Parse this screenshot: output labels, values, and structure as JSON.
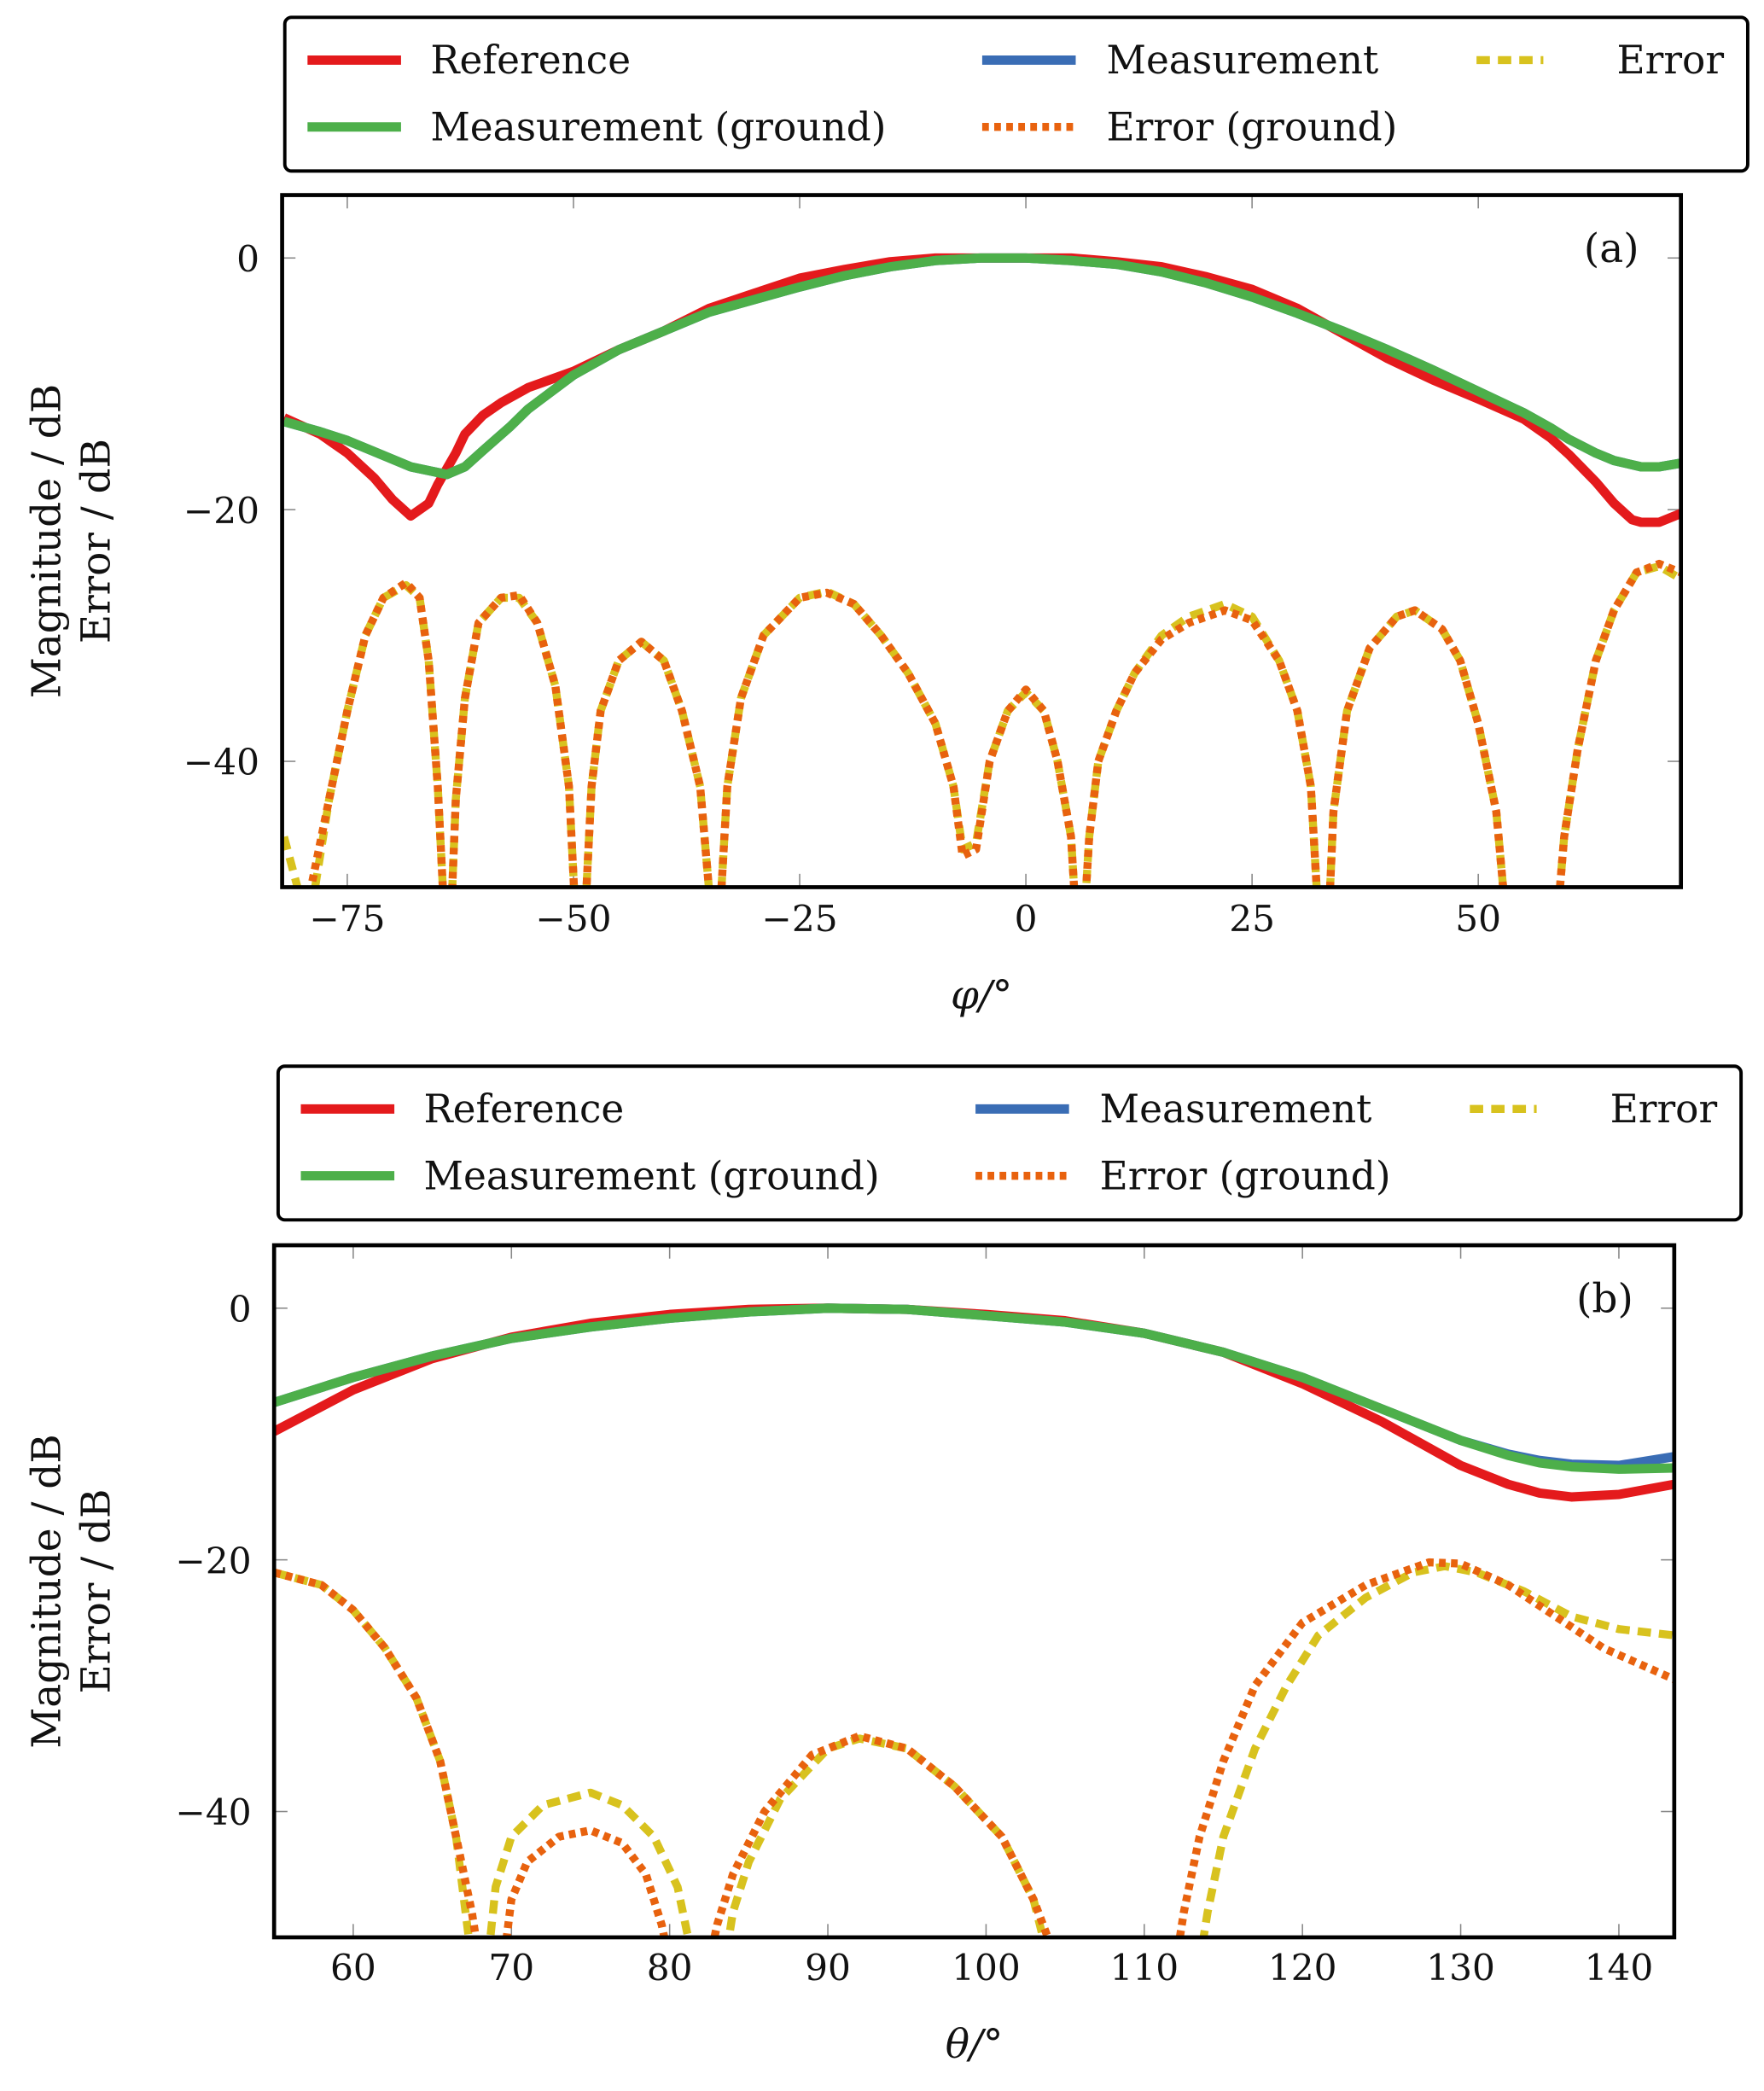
{
  "colors": {
    "Reference": "#e41a1c",
    "Measurement": "#3a6db5",
    "Error": "#d8c21e",
    "Measurement (ground)": "#4daf4a",
    "Error (ground)": "#e8620e"
  },
  "chart_data": [
    {
      "type": "line",
      "panel_label": "(a)",
      "xlabel": "φ/°",
      "ylabel": [
        "Magnitude / dB",
        "Error / dB"
      ],
      "xlim": [
        -82.2,
        72.4
      ],
      "ylim": [
        -50,
        5
      ],
      "xticks": [
        -75,
        -50,
        -25,
        0,
        25,
        50
      ],
      "xtick_labels": [
        "−75",
        "−50",
        "−25",
        "0",
        "25",
        "50"
      ],
      "yticks": [
        0,
        -20,
        -40
      ],
      "ytick_labels": [
        "0",
        "−20",
        "−40"
      ],
      "legend": [
        "Reference",
        "Measurement",
        "Error",
        "Measurement (ground)",
        "Error (ground)"
      ],
      "legend_placement": "top, outside",
      "series": [
        {
          "name": "Reference",
          "style": "solid",
          "x": [
            -82,
            -78,
            -75,
            -72,
            -70,
            -68,
            -66,
            -65,
            -63,
            -62,
            -60,
            -58,
            -55,
            -50,
            -45,
            -40,
            -35,
            -30,
            -25,
            -20,
            -15,
            -10,
            -5,
            0,
            5,
            10,
            15,
            20,
            25,
            30,
            35,
            40,
            45,
            50,
            55,
            58,
            60,
            63,
            65,
            67,
            68,
            70,
            72.4
          ],
          "y": [
            -12.7,
            -14,
            -15.5,
            -17.5,
            -19.2,
            -20.5,
            -19.5,
            -18,
            -15.5,
            -14,
            -12.5,
            -11.5,
            -10.3,
            -9,
            -7.3,
            -5.8,
            -4,
            -2.8,
            -1.6,
            -0.9,
            -0.3,
            0,
            0,
            0,
            0,
            -0.3,
            -0.7,
            -1.5,
            -2.5,
            -4,
            -6,
            -8,
            -9.7,
            -11.2,
            -12.8,
            -14.3,
            -15.6,
            -17.8,
            -19.5,
            -20.8,
            -21,
            -21,
            -20.3
          ]
        },
        {
          "name": "Measurement",
          "style": "solid",
          "x": [
            -82,
            -78,
            -75,
            -72,
            -68,
            -64,
            -62,
            -60,
            -57,
            -55,
            -50,
            -45,
            -40,
            -35,
            -30,
            -25,
            -20,
            -15,
            -10,
            -5,
            0,
            5,
            10,
            15,
            20,
            25,
            30,
            35,
            40,
            45,
            50,
            55,
            58,
            60,
            63,
            65,
            68,
            70,
            72.4
          ],
          "y": [
            -13,
            -13.8,
            -14.5,
            -15.4,
            -16.6,
            -17.2,
            -16.6,
            -15.3,
            -13.4,
            -12,
            -9.3,
            -7.3,
            -5.8,
            -4.3,
            -3.3,
            -2.3,
            -1.4,
            -0.7,
            -0.2,
            0,
            0,
            -0.2,
            -0.5,
            -1.1,
            -2,
            -3.1,
            -4.4,
            -5.8,
            -7.3,
            -8.9,
            -10.6,
            -12.3,
            -13.5,
            -14.4,
            -15.5,
            -16.1,
            -16.6,
            -16.6,
            -16.3
          ]
        },
        {
          "name": "Measurement (ground)",
          "style": "solid",
          "x": [
            -82,
            -78,
            -75,
            -72,
            -68,
            -64,
            -62,
            -60,
            -57,
            -55,
            -50,
            -45,
            -40,
            -35,
            -30,
            -25,
            -20,
            -15,
            -10,
            -5,
            0,
            5,
            10,
            15,
            20,
            25,
            30,
            35,
            40,
            45,
            50,
            55,
            58,
            60,
            63,
            65,
            68,
            70,
            72.4
          ],
          "y": [
            -13,
            -13.8,
            -14.5,
            -15.4,
            -16.6,
            -17.2,
            -16.6,
            -15.3,
            -13.4,
            -12,
            -9.3,
            -7.3,
            -5.8,
            -4.3,
            -3.3,
            -2.3,
            -1.4,
            -0.7,
            -0.2,
            0,
            0,
            -0.2,
            -0.5,
            -1.1,
            -2,
            -3.1,
            -4.4,
            -5.8,
            -7.3,
            -8.9,
            -10.6,
            -12.3,
            -13.5,
            -14.4,
            -15.5,
            -16.1,
            -16.6,
            -16.6,
            -16.3
          ]
        },
        {
          "name": "Error",
          "style": "dashed",
          "x": [
            -82,
            -80.5,
            -79,
            -77,
            -75,
            -73,
            -71,
            -68.5,
            -67,
            -66,
            -65,
            -64.3,
            -63.5,
            -63,
            -62,
            -60.5,
            -58,
            -56,
            -54,
            -52,
            -50.5,
            -49.8,
            -48.7,
            -48,
            -47,
            -45,
            -42.5,
            -40,
            -38,
            -36,
            -34.8,
            -33.8,
            -33,
            -31.5,
            -29,
            -25,
            -22,
            -19,
            -16,
            -13,
            -10,
            -8,
            -7,
            -5.5,
            -4,
            -2,
            0,
            2,
            3.5,
            5,
            5.5,
            6.5,
            7,
            8,
            10,
            12,
            15,
            18,
            22,
            25,
            28,
            30,
            31.5,
            32.3,
            33.5,
            34,
            35.5,
            38,
            41,
            43,
            46,
            48,
            50,
            52,
            53,
            58.8,
            59.5,
            61,
            63,
            65,
            67.5,
            70,
            72.4
          ],
          "y": [
            -46,
            -50,
            -52,
            -43,
            -36,
            -30,
            -27,
            -26,
            -27,
            -32,
            -42,
            -52,
            -52,
            -43,
            -35,
            -29,
            -27,
            -27,
            -29,
            -34,
            -42,
            -52,
            -52,
            -42,
            -36,
            -32,
            -30.5,
            -32,
            -36,
            -42,
            -52,
            -52,
            -42,
            -35,
            -30,
            -27,
            -26.5,
            -27.5,
            -30,
            -33,
            -37,
            -42,
            -47,
            -46.5,
            -40,
            -36,
            -34.5,
            -36,
            -40,
            -46,
            -52,
            -52,
            -46,
            -40,
            -36,
            -33,
            -30,
            -28.5,
            -27.5,
            -28.5,
            -32,
            -36,
            -42,
            -52,
            -52,
            -44,
            -36,
            -31,
            -28.5,
            -28,
            -29.5,
            -32,
            -37,
            -44,
            -52,
            -52,
            -46,
            -39,
            -32,
            -28,
            -25,
            -24.5,
            -25.5
          ]
        },
        {
          "name": "Error (ground)",
          "style": "dotted",
          "x": [
            -82,
            -80.5,
            -79,
            -77,
            -75,
            -73,
            -71,
            -68.5,
            -67,
            -66,
            -65,
            -64.3,
            -63.5,
            -63,
            -62,
            -60.5,
            -58,
            -56,
            -54,
            -52,
            -50.5,
            -49.8,
            -48.7,
            -48,
            -47,
            -45,
            -42.5,
            -40,
            -38,
            -36,
            -34.8,
            -33.8,
            -33,
            -31.5,
            -29,
            -25,
            -22,
            -19,
            -16,
            -13,
            -10,
            -8,
            -7,
            -5.5,
            -4,
            -2,
            0,
            2,
            3.5,
            5,
            5.5,
            6.5,
            7,
            8,
            10,
            12,
            15,
            18,
            22,
            25,
            28,
            30,
            31.5,
            32.3,
            33.5,
            34,
            35.5,
            38,
            41,
            43,
            46,
            48,
            50,
            52,
            53,
            58.8,
            59.5,
            61,
            63,
            65,
            67.5,
            70,
            72.4
          ],
          "y": [
            -52,
            -52,
            -50,
            -43,
            -36,
            -30,
            -27,
            -25.8,
            -27,
            -32,
            -42,
            -52,
            -52,
            -43,
            -35,
            -29,
            -27,
            -26.8,
            -29,
            -34,
            -42,
            -52,
            -52,
            -42,
            -36,
            -32,
            -30.5,
            -32,
            -36,
            -42,
            -52,
            -52,
            -42,
            -35,
            -30,
            -27,
            -26.6,
            -27.5,
            -30,
            -33,
            -37,
            -42,
            -47.5,
            -47,
            -40,
            -36,
            -34.3,
            -36,
            -40,
            -46,
            -52,
            -52,
            -46,
            -40,
            -36,
            -33,
            -30.3,
            -29,
            -28,
            -28.8,
            -32,
            -36,
            -42,
            -52,
            -52,
            -44,
            -36,
            -31,
            -28.5,
            -28,
            -29.5,
            -32,
            -37,
            -44,
            -52,
            -52,
            -46,
            -39,
            -32,
            -28,
            -25,
            -24.3,
            -25
          ]
        }
      ]
    },
    {
      "type": "line",
      "panel_label": "(b)",
      "xlabel": "θ/°",
      "ylabel": [
        "Magnitude / dB",
        "Error / dB"
      ],
      "xlim": [
        55,
        143.5
      ],
      "ylim": [
        -50,
        5
      ],
      "xticks": [
        60,
        70,
        80,
        90,
        100,
        110,
        120,
        130,
        140
      ],
      "xtick_labels": [
        "60",
        "70",
        "80",
        "90",
        "100",
        "110",
        "120",
        "130",
        "140"
      ],
      "yticks": [
        0,
        -20,
        -40
      ],
      "ytick_labels": [
        "0",
        "−20",
        "−40"
      ],
      "legend": [
        "Reference",
        "Measurement",
        "Error",
        "Measurement (ground)",
        "Error (ground)"
      ],
      "legend_placement": "top, outside",
      "series": [
        {
          "name": "Reference",
          "style": "solid",
          "x": [
            55,
            60,
            65,
            70,
            75,
            80,
            85,
            90,
            95,
            100,
            105,
            110,
            115,
            120,
            125,
            130,
            133,
            135,
            137,
            140,
            143.5
          ],
          "y": [
            -9.8,
            -6.5,
            -4,
            -2.3,
            -1.2,
            -0.5,
            -0.1,
            0,
            -0.1,
            -0.5,
            -1,
            -2,
            -3.5,
            -6,
            -9,
            -12.5,
            -14,
            -14.7,
            -15,
            -14.8,
            -14
          ]
        },
        {
          "name": "Measurement",
          "style": "solid",
          "x": [
            55,
            60,
            65,
            70,
            75,
            80,
            85,
            90,
            95,
            100,
            105,
            110,
            115,
            120,
            125,
            130,
            133,
            135,
            137,
            140,
            143.5
          ],
          "y": [
            -7.5,
            -5.5,
            -3.8,
            -2.4,
            -1.5,
            -0.8,
            -0.3,
            0,
            -0.1,
            -0.6,
            -1.1,
            -2,
            -3.5,
            -5.5,
            -8,
            -10.5,
            -11.6,
            -12.1,
            -12.4,
            -12.5,
            -11.8
          ]
        },
        {
          "name": "Measurement (ground)",
          "style": "solid",
          "x": [
            55,
            60,
            65,
            70,
            75,
            80,
            85,
            90,
            95,
            100,
            105,
            110,
            115,
            120,
            125,
            130,
            133,
            135,
            137,
            140,
            143.5
          ],
          "y": [
            -7.5,
            -5.5,
            -3.8,
            -2.4,
            -1.5,
            -0.8,
            -0.3,
            0,
            -0.1,
            -0.6,
            -1.1,
            -2,
            -3.5,
            -5.5,
            -8,
            -10.5,
            -11.7,
            -12.3,
            -12.6,
            -12.8,
            -12.7
          ]
        },
        {
          "name": "Error",
          "style": "dashed",
          "x": [
            55,
            58,
            60,
            62,
            64,
            65.5,
            66.5,
            67,
            67.5,
            68.5,
            69,
            70,
            72,
            75,
            77,
            79,
            80.5,
            81.5,
            83.5,
            84,
            85,
            87,
            90,
            92,
            95,
            98,
            101,
            103,
            104,
            113.5,
            114,
            115,
            117,
            119,
            121,
            124,
            127,
            129,
            131,
            134,
            137,
            140,
            143.5
          ],
          "y": [
            -21,
            -22,
            -24,
            -27,
            -31,
            -36,
            -42,
            -47,
            -52,
            -52,
            -46,
            -42,
            -39.5,
            -38.5,
            -39.5,
            -42,
            -46,
            -52,
            -52,
            -48,
            -44,
            -39,
            -35,
            -34.2,
            -35,
            -38,
            -42,
            -47,
            -52,
            -52,
            -48,
            -42,
            -35,
            -30,
            -26,
            -23,
            -21,
            -20.5,
            -21,
            -22.5,
            -24.5,
            -25.5,
            -26
          ]
        },
        {
          "name": "Error (ground)",
          "style": "dotted",
          "x": [
            55,
            58,
            60,
            62,
            64,
            65.5,
            66.5,
            67.5,
            68,
            69.5,
            70,
            71,
            73,
            75,
            77,
            78.5,
            79.5,
            80,
            82.5,
            83,
            84,
            86,
            89,
            92,
            95,
            98,
            101,
            103,
            104.5,
            112,
            112.5,
            113.5,
            115,
            117,
            120,
            124,
            128,
            130,
            133,
            136,
            139,
            143.5
          ],
          "y": [
            -21,
            -22,
            -24,
            -27,
            -31,
            -36,
            -42,
            -48,
            -52,
            -52,
            -47,
            -44,
            -42,
            -41.5,
            -42.5,
            -45,
            -49,
            -52,
            -52,
            -49,
            -45,
            -40,
            -35.5,
            -34,
            -35,
            -38,
            -42,
            -47,
            -52,
            -52,
            -48,
            -42,
            -36,
            -30,
            -25,
            -22,
            -20.2,
            -20.3,
            -22,
            -24.5,
            -27,
            -29.5
          ]
        }
      ]
    }
  ]
}
